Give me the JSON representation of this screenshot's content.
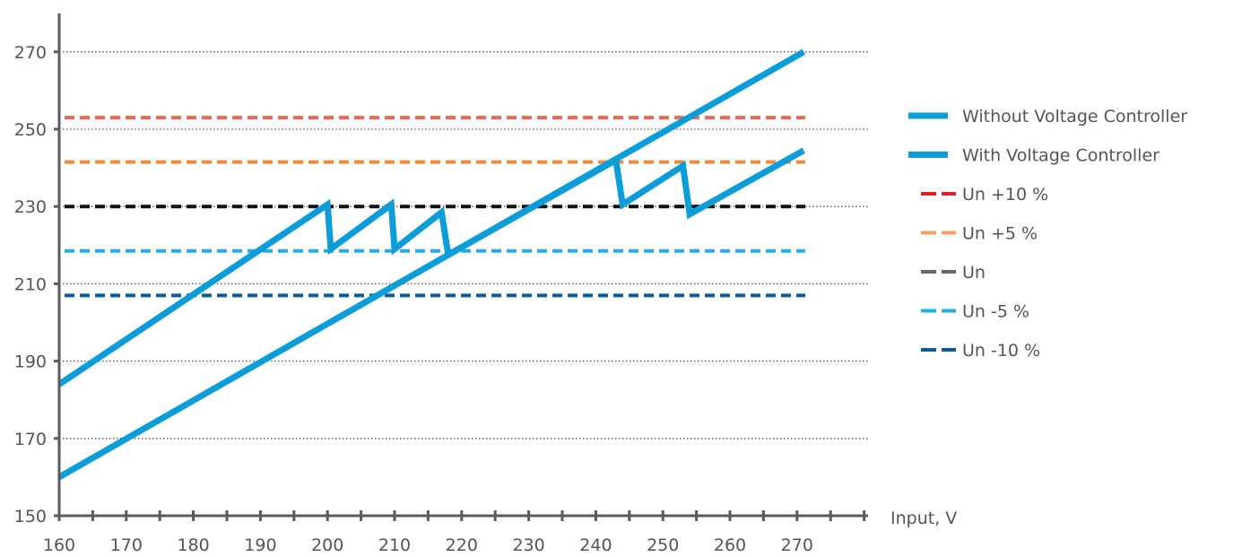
{
  "chart_data": {
    "type": "line",
    "title": "",
    "xlabel": "Input, V",
    "ylabel": "",
    "xlim": [
      160,
      280
    ],
    "ylim": [
      150,
      280
    ],
    "grid": "horizontal dotted",
    "legend_position": "right",
    "x_tick_labels": [
      "160",
      "170",
      "180",
      "190",
      "200",
      "210",
      "220",
      "230",
      "240",
      "250",
      "260",
      "270"
    ],
    "y_tick_labels": [
      "150",
      "170",
      "190",
      "210",
      "230",
      "250",
      "270"
    ],
    "series": [
      {
        "name": "Without Voltage Controller",
        "color": "#0A9DD9",
        "style": "solid",
        "points": [
          [
            160,
            160
          ],
          [
            271,
            270
          ]
        ]
      },
      {
        "name": "With Voltage Controller",
        "color": "#0A9DD9",
        "style": "solid",
        "points": [
          [
            160,
            184
          ],
          [
            200,
            230.5
          ],
          [
            200.5,
            219
          ],
          [
            209.5,
            230.5
          ],
          [
            210,
            219
          ],
          [
            217,
            228.5
          ],
          [
            218,
            217.5
          ],
          [
            243,
            242
          ],
          [
            244,
            230.5
          ],
          [
            253,
            240.5
          ],
          [
            254,
            228
          ],
          [
            271,
            244.5
          ]
        ]
      }
    ],
    "reference_lines": [
      {
        "name": "Un +10 %",
        "value": 253,
        "color": "#EB6A50",
        "legend_color": "#E3202A"
      },
      {
        "name": "Un +5 %",
        "value": 241.5,
        "color": "#F08A3C",
        "legend_color": "#F5A062"
      },
      {
        "name": "Un",
        "value": 230,
        "color": "#111111",
        "legend_color": "#666666"
      },
      {
        "name": "Un -5 %",
        "value": 218.5,
        "color": "#29ABE2",
        "legend_color": "#29ABE2"
      },
      {
        "name": "Un -10 %",
        "value": 207,
        "color": "#0F5A9A",
        "legend_color": "#0F5A9A"
      }
    ]
  }
}
